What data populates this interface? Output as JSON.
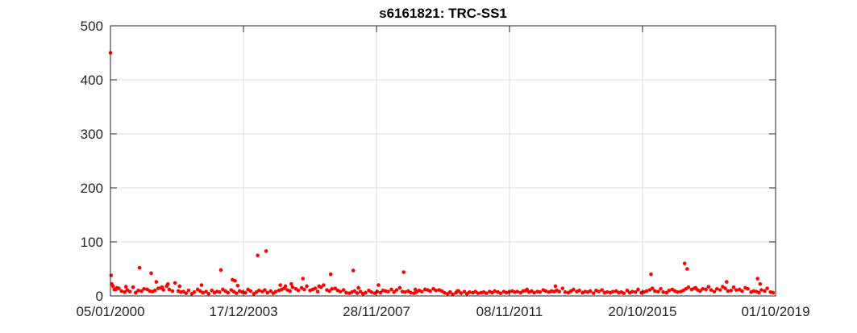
{
  "chart_data": {
    "type": "scatter",
    "title": "s6161821: TRC-SS1",
    "xlabel": "",
    "ylabel": "",
    "x_axis": "date",
    "xlim": [
      "2000-01-05",
      "2019-10-01"
    ],
    "ylim": [
      0,
      500
    ],
    "xticks": [
      {
        "date": "2000-01-05",
        "label": "05/01/2000"
      },
      {
        "date": "2003-12-17",
        "label": "17/12/2003"
      },
      {
        "date": "2007-11-28",
        "label": "28/11/2007"
      },
      {
        "date": "2011-11-08",
        "label": "08/11/2011"
      },
      {
        "date": "2015-10-20",
        "label": "20/10/2015"
      },
      {
        "date": "2019-10-01",
        "label": "01/10/2019"
      }
    ],
    "yticks": [
      0,
      100,
      200,
      300,
      400,
      500
    ],
    "yticklabels": [
      "0",
      "100",
      "200",
      "300",
      "400",
      "500"
    ],
    "grid": true,
    "marker_color": "#ff0000",
    "series": [
      {
        "x": [
          "2000-01-12",
          "2000-02-02",
          "2000-03-01",
          "2000-04-05",
          "2000-05-03",
          "2000-06-07",
          "2000-07-05",
          "2000-08-02",
          "2000-09-06",
          "2000-10-04",
          "2000-11-01",
          "2000-12-06",
          "2001-01-03",
          "2001-02-07",
          "2001-03-07",
          "2001-04-04",
          "2001-05-02",
          "2001-06-06",
          "2001-07-04",
          "2001-08-01",
          "2001-09-05",
          "2001-10-03",
          "2001-11-07",
          "2001-12-05",
          "2002-01-09",
          "2002-02-06",
          "2002-03-06",
          "2002-04-03",
          "2002-05-01",
          "2002-06-05",
          "2002-07-03",
          "2002-08-07",
          "2002-09-04",
          "2002-10-02",
          "2002-11-06",
          "2002-12-04",
          "2003-01-08",
          "2003-02-05",
          "2003-03-05",
          "2003-04-02",
          "2003-05-07",
          "2003-06-04",
          "2003-07-02",
          "2003-08-06",
          "2003-09-03",
          "2003-10-01",
          "2003-11-05",
          "2003-12-03",
          "2004-01-07",
          "2004-02-04",
          "2004-03-03",
          "2004-04-07",
          "2004-05-05",
          "2004-06-02",
          "2004-07-07",
          "2004-08-04",
          "2004-09-01",
          "2004-10-06",
          "2004-11-03",
          "2004-12-01",
          "2005-01-05",
          "2005-02-02",
          "2005-03-02",
          "2005-04-06",
          "2005-05-04",
          "2005-06-01",
          "2005-07-06",
          "2005-08-03",
          "2005-09-07",
          "2005-10-05",
          "2005-11-02",
          "2005-12-07",
          "2006-01-04",
          "2006-02-01",
          "2006-03-01",
          "2006-04-05",
          "2006-05-03",
          "2006-06-07",
          "2006-07-05",
          "2006-08-02",
          "2006-09-06",
          "2006-10-04",
          "2006-11-01",
          "2006-12-06",
          "2007-01-03",
          "2007-02-07",
          "2007-03-07",
          "2007-04-04",
          "2007-05-02",
          "2007-06-06",
          "2007-07-04",
          "2007-08-01",
          "2007-09-05",
          "2007-10-03",
          "2007-11-07",
          "2007-12-05",
          "2008-01-09",
          "2008-02-06",
          "2008-03-05",
          "2008-04-02",
          "2008-05-07",
          "2008-06-04",
          "2008-07-02",
          "2008-08-06",
          "2008-09-03",
          "2008-10-01",
          "2008-11-05",
          "2008-12-03",
          "2009-01-07",
          "2009-02-04",
          "2009-03-04",
          "2009-04-01",
          "2009-05-06",
          "2009-06-03",
          "2009-07-01",
          "2009-08-05",
          "2009-09-02",
          "2009-10-07",
          "2009-11-04",
          "2009-12-02",
          "2010-01-06",
          "2010-02-03",
          "2010-03-03",
          "2010-04-07",
          "2010-05-05",
          "2010-06-02",
          "2010-07-07",
          "2010-08-04",
          "2010-09-01",
          "2010-10-06",
          "2010-11-03",
          "2010-12-01",
          "2011-01-05",
          "2011-02-02",
          "2011-03-02",
          "2011-04-06",
          "2011-05-04",
          "2011-06-01",
          "2011-07-06",
          "2011-08-03",
          "2011-09-07",
          "2011-10-05",
          "2011-11-02",
          "2011-12-07",
          "2012-01-04",
          "2012-02-01",
          "2012-03-07",
          "2012-04-04",
          "2012-05-02",
          "2012-06-06",
          "2012-07-04",
          "2012-08-01",
          "2012-09-05",
          "2012-10-03",
          "2012-11-07",
          "2012-12-05",
          "2013-01-09",
          "2013-02-06",
          "2013-03-06",
          "2013-04-03",
          "2013-05-01",
          "2013-06-05",
          "2013-07-03",
          "2013-08-07",
          "2013-09-04",
          "2013-10-02",
          "2013-11-06",
          "2013-12-04",
          "2014-01-08",
          "2014-02-05",
          "2014-03-05",
          "2014-04-02",
          "2014-05-07",
          "2014-06-04",
          "2014-07-02",
          "2014-08-06",
          "2014-09-03",
          "2014-10-01",
          "2014-11-05",
          "2014-12-03",
          "2015-01-07",
          "2015-02-04",
          "2015-03-04",
          "2015-04-01",
          "2015-05-06",
          "2015-06-03",
          "2015-07-01",
          "2015-08-05",
          "2015-09-02",
          "2015-10-07",
          "2015-11-04",
          "2015-12-02",
          "2016-01-06",
          "2016-02-03",
          "2016-03-02",
          "2016-04-06",
          "2016-05-04",
          "2016-06-01",
          "2016-07-06",
          "2016-08-03",
          "2016-09-07",
          "2016-10-05",
          "2016-11-02",
          "2016-12-07",
          "2017-01-04",
          "2017-02-01",
          "2017-03-01",
          "2017-04-05",
          "2017-05-03",
          "2017-06-07",
          "2017-07-05",
          "2017-08-02",
          "2017-09-06",
          "2017-10-04",
          "2017-11-01",
          "2017-12-06",
          "2018-01-03",
          "2018-02-07",
          "2018-03-07",
          "2018-04-04",
          "2018-05-02",
          "2018-06-06",
          "2018-07-04",
          "2018-08-01",
          "2018-09-05",
          "2018-10-03",
          "2018-11-07",
          "2018-12-05",
          "2019-01-09",
          "2019-02-06",
          "2019-03-06",
          "2019-04-03",
          "2019-05-01",
          "2019-06-05",
          "2019-07-03",
          "2019-08-07",
          "2019-09-04",
          "2000-01-05",
          "2000-01-19",
          "2000-02-16",
          "2000-03-15",
          "2000-06-21",
          "2000-11-15",
          "2001-03-21",
          "2001-05-16",
          "2001-07-18",
          "2001-09-19",
          "2002-01-23",
          "2002-09-18",
          "2003-04-16",
          "2003-08-20",
          "2003-09-17",
          "2003-10-15",
          "2004-05-19",
          "2004-08-18",
          "2005-01-19",
          "2005-03-16",
          "2005-05-18",
          "2005-09-21",
          "2006-03-15",
          "2006-07-19",
          "2007-03-21",
          "2007-05-16",
          "2007-12-19",
          "2008-09-17",
          "2009-01-21",
          "2010-04-21",
          "2012-05-16",
          "2013-03-20",
          "2016-01-20",
          "2017-01-18",
          "2017-02-15",
          "2017-05-17",
          "2018-04-18",
          "2019-03-20",
          "2019-04-17"
        ],
        "y": [
          38,
          18,
          12,
          14,
          9,
          7,
          11,
          8,
          16,
          6,
          10,
          9,
          13,
          12,
          9,
          8,
          10,
          14,
          15,
          11,
          18,
          12,
          9,
          24,
          9,
          7,
          8,
          5,
          10,
          4,
          7,
          12,
          9,
          6,
          8,
          4,
          10,
          6,
          8,
          7,
          12,
          9,
          6,
          11,
          8,
          5,
          9,
          7,
          6,
          12,
          9,
          4,
          7,
          10,
          8,
          11,
          6,
          9,
          5,
          8,
          10,
          12,
          14,
          11,
          9,
          16,
          13,
          10,
          15,
          12,
          18,
          10,
          12,
          14,
          8,
          16,
          20,
          11,
          9,
          13,
          14,
          10,
          8,
          11,
          6,
          5,
          7,
          9,
          5,
          8,
          4,
          6,
          10,
          7,
          5,
          8,
          6,
          10,
          9,
          8,
          12,
          7,
          11,
          15,
          8,
          7,
          9,
          6,
          5,
          7,
          10,
          8,
          12,
          11,
          9,
          13,
          10,
          11,
          9,
          6,
          4,
          7,
          3,
          6,
          9,
          5,
          8,
          4,
          7,
          6,
          8,
          5,
          6,
          7,
          5,
          8,
          6,
          9,
          7,
          5,
          8,
          6,
          7,
          9,
          7,
          8,
          6,
          9,
          10,
          7,
          9,
          6,
          8,
          7,
          11,
          9,
          7,
          9,
          8,
          10,
          8,
          14,
          7,
          6,
          9,
          12,
          8,
          10,
          6,
          8,
          7,
          9,
          5,
          10,
          8,
          11,
          6,
          7,
          6,
          8,
          9,
          6,
          7,
          5,
          10,
          6,
          8,
          7,
          12,
          6,
          7,
          9,
          11,
          14,
          9,
          8,
          13,
          7,
          6,
          10,
          12,
          9,
          7,
          8,
          10,
          13,
          16,
          12,
          14,
          11,
          9,
          13,
          12,
          17,
          11,
          8,
          13,
          11,
          17,
          14,
          9,
          10,
          16,
          11,
          12,
          9,
          15,
          13,
          7,
          9,
          8,
          6,
          11,
          9,
          14,
          7,
          6,
          450,
          22,
          12,
          15,
          17,
          52,
          42,
          26,
          16,
          22,
          18,
          20,
          48,
          30,
          28,
          19,
          75,
          83,
          20,
          18,
          22,
          32,
          18,
          40,
          47,
          15,
          20,
          44,
          12,
          9,
          12,
          18,
          40,
          60,
          50,
          15,
          26,
          32,
          22
        ]
      }
    ]
  }
}
